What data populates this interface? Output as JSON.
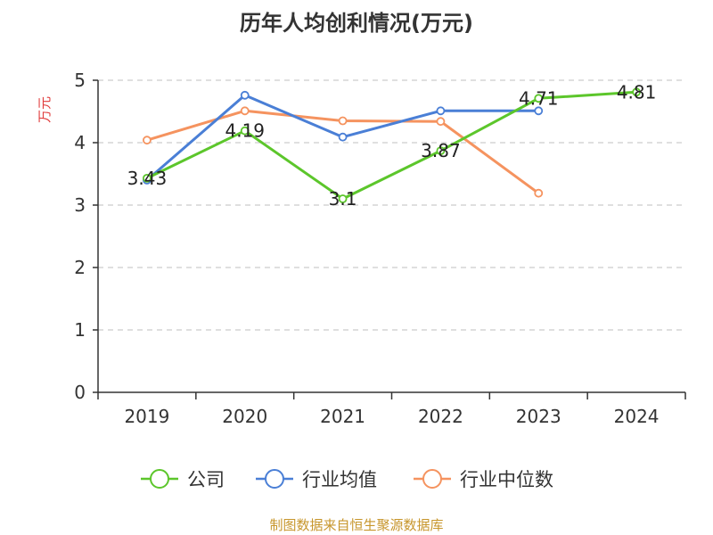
{
  "chart_data": {
    "type": "line",
    "title": "历年人均创利情况(万元)",
    "ylabel": "万元",
    "xlabel": "",
    "categories": [
      "2019",
      "2020",
      "2021",
      "2022",
      "2023",
      "2024"
    ],
    "ylim": [
      0,
      5
    ],
    "yticks": [
      "0",
      "1",
      "2",
      "3",
      "4",
      "5"
    ],
    "grid": true,
    "legend_position": "bottom",
    "series": [
      {
        "name": "公司",
        "color": "#5cc62b",
        "values": [
          3.43,
          4.19,
          3.1,
          3.87,
          4.71,
          4.81
        ],
        "labels": [
          "3.43",
          "4.19",
          "3.1",
          "3.87",
          "4.71",
          "4.81"
        ]
      },
      {
        "name": "行业均值",
        "color": "#4a7fd6",
        "values": [
          3.4,
          4.76,
          4.09,
          4.51,
          4.51,
          null
        ]
      },
      {
        "name": "行业中位数",
        "color": "#f5935f",
        "values": [
          4.04,
          4.51,
          4.35,
          4.34,
          3.19,
          null
        ]
      }
    ]
  },
  "source": "制图数据来自恒生聚源数据库",
  "colors": {
    "ylabel": "#e03c3c",
    "source": "#c7962c",
    "grid": "#cccccc",
    "axis": "#333333"
  }
}
